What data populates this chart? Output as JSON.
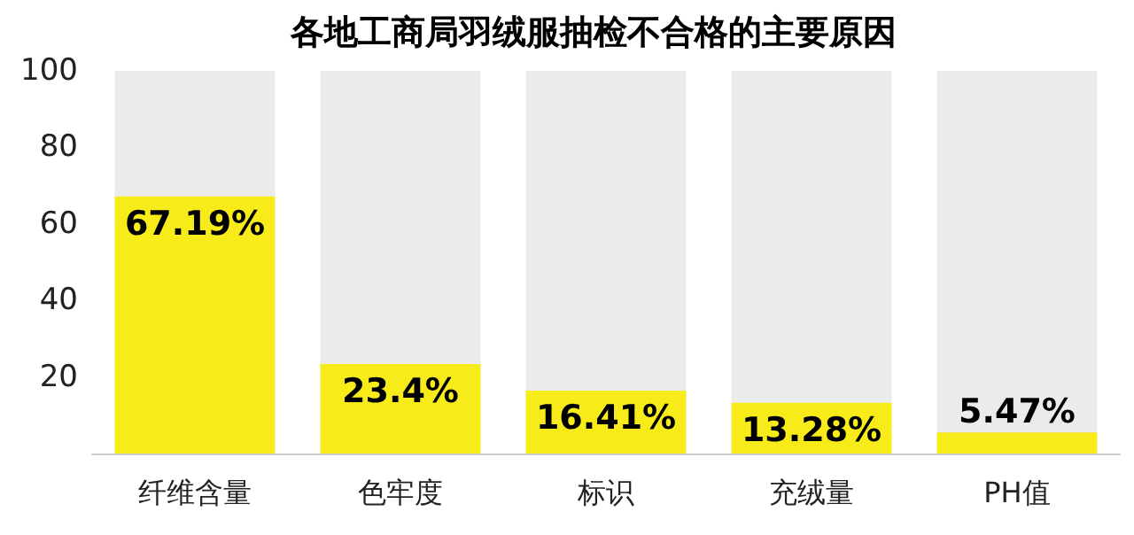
{
  "chart_data": {
    "type": "bar",
    "title": "各地工商局羽绒服抽检不合格的主要原因",
    "categories": [
      "纤维含量",
      "色牢度",
      "标识",
      "充绒量",
      "PH值"
    ],
    "values": [
      67.19,
      23.4,
      16.41,
      13.28,
      5.47
    ],
    "value_labels": [
      "67.19%",
      "23.4%",
      "16.41%",
      "13.28%",
      "5.47%"
    ],
    "color": "#f7ec1a",
    "ylim": [
      0,
      100
    ],
    "yticks": [
      20,
      40,
      60,
      80,
      100
    ],
    "grid": false
  }
}
